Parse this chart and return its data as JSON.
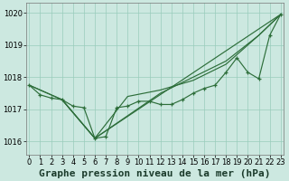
{
  "title": "Graphe pression niveau de la mer (hPa)",
  "bg_color": "#cce8e0",
  "grid_color": "#99ccbb",
  "line_color": "#2d6e3a",
  "x_ticks": [
    0,
    1,
    2,
    3,
    4,
    5,
    6,
    7,
    8,
    9,
    10,
    11,
    12,
    13,
    14,
    15,
    16,
    17,
    18,
    19,
    20,
    21,
    22,
    23
  ],
  "ylim": [
    1015.6,
    1020.3
  ],
  "xlim": [
    -0.3,
    23.3
  ],
  "yticks": [
    1016,
    1017,
    1018,
    1019,
    1020
  ],
  "line_main": {
    "x": [
      0,
      1,
      2,
      3,
      4,
      5,
      6,
      7,
      8,
      9,
      10,
      11,
      12,
      13,
      14,
      15,
      16,
      17,
      18,
      19,
      20,
      21,
      22,
      23
    ],
    "y": [
      1017.75,
      1017.45,
      1017.35,
      1017.3,
      1017.1,
      1017.05,
      1016.1,
      1016.15,
      1017.05,
      1017.1,
      1017.25,
      1017.25,
      1017.15,
      1017.15,
      1017.3,
      1017.5,
      1017.65,
      1017.75,
      1018.15,
      1018.6,
      1018.15,
      1017.95,
      1019.3,
      1019.95
    ]
  },
  "line_smooth1": {
    "x": [
      0,
      3,
      6,
      23
    ],
    "y": [
      1017.75,
      1017.3,
      1016.1,
      1019.95
    ]
  },
  "line_smooth2": {
    "x": [
      0,
      3,
      6,
      12,
      18,
      21,
      23
    ],
    "y": [
      1017.75,
      1017.3,
      1016.1,
      1017.5,
      1018.5,
      1019.3,
      1019.95
    ]
  },
  "line_smooth3": {
    "x": [
      3,
      6,
      9,
      12,
      15,
      18,
      21,
      23
    ],
    "y": [
      1017.3,
      1016.1,
      1017.4,
      1017.6,
      1017.9,
      1018.4,
      1019.3,
      1019.95
    ]
  },
  "title_fontsize": 8,
  "tick_fontsize": 6
}
